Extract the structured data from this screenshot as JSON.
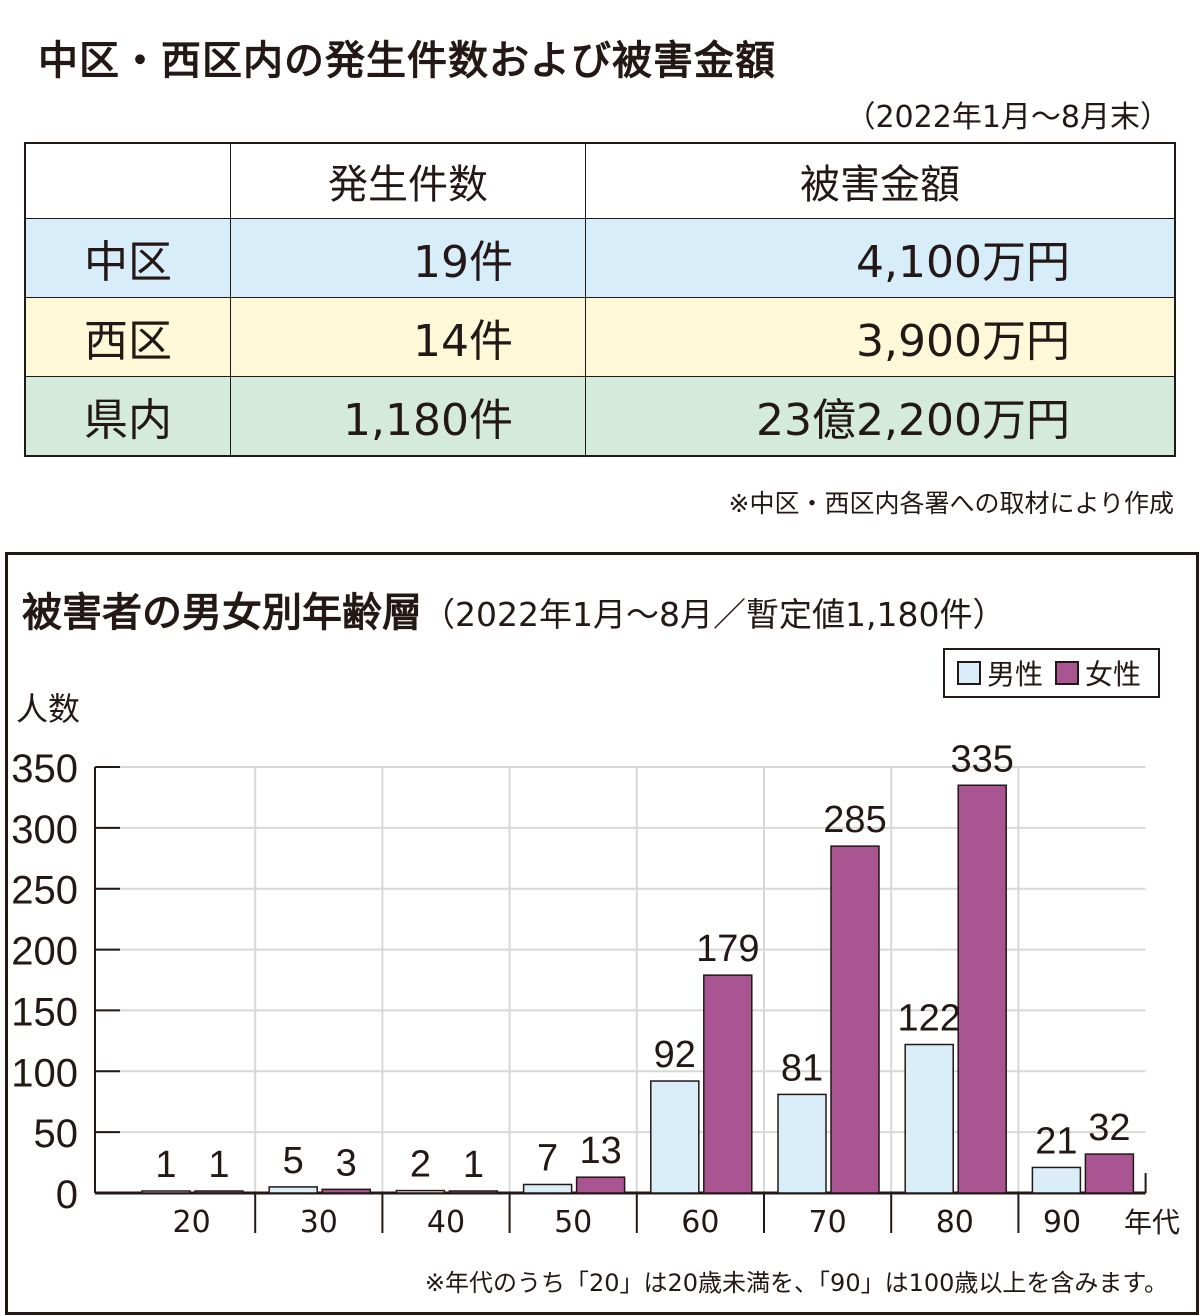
{
  "table_section": {
    "title": "中区・西区内の発生件数および被害金額",
    "period": "（2022年1月～8月末）",
    "headers": [
      "",
      "発生件数",
      "被害金額"
    ],
    "rows": [
      {
        "label": "中区",
        "count": "19件",
        "amount": "4,100万円",
        "color": "#d7edf9"
      },
      {
        "label": "西区",
        "count": "14件",
        "amount": "3,900万円",
        "color": "#fdf8d7"
      },
      {
        "label": "県内",
        "count": "1,180件",
        "amount": "23億2,200万円",
        "color": "#d4eadb"
      }
    ],
    "note": "※中区・西区内各署への取材により作成"
  },
  "chart_data": {
    "type": "bar",
    "title": "被害者の男女別年齢層",
    "subtitle": "（2022年1月～8月／暫定値1,180件）",
    "ylabel": "人数",
    "xlabel": "年代",
    "categories": [
      "20",
      "30",
      "40",
      "50",
      "60",
      "70",
      "80",
      "90"
    ],
    "series": [
      {
        "name": "男性",
        "color": "#d9eef9",
        "values": [
          1,
          5,
          2,
          7,
          92,
          81,
          122,
          21
        ]
      },
      {
        "name": "女性",
        "color": "#a85592",
        "values": [
          1,
          3,
          1,
          13,
          179,
          285,
          335,
          32
        ]
      }
    ],
    "ylim": [
      0,
      350
    ],
    "yticks": [
      0,
      50,
      100,
      150,
      200,
      250,
      300,
      350
    ],
    "grid": true,
    "legend_position": "top-right",
    "note": "※年代のうち「20」は20歳未満を、「90」は100歳以上を含みます。"
  }
}
